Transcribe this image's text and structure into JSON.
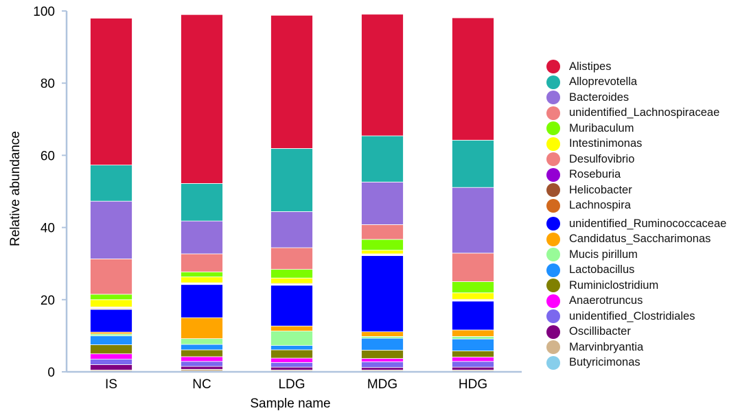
{
  "chart_data": {
    "type": "bar",
    "stacked": true,
    "xlabel": "Sample name",
    "ylabel": "Relative abundance",
    "ylim": [
      0,
      100
    ],
    "yticks": [
      0,
      20,
      40,
      60,
      80,
      100
    ],
    "categories": [
      "IS",
      "NC",
      "LDG",
      "MDG",
      "HDG"
    ],
    "legend_position": "right",
    "series": [
      {
        "name": "Butyricimonas",
        "color": "#87CEEB",
        "values": [
          0.2,
          0.2,
          0.2,
          0.2,
          0.2
        ]
      },
      {
        "name": "Marvinbryantia",
        "color": "#D2B48C",
        "values": [
          0.3,
          0.5,
          0.3,
          0.3,
          0.3
        ]
      },
      {
        "name": "Oscillibacter",
        "color": "#800080",
        "values": [
          1.5,
          0.8,
          0.8,
          0.7,
          0.8
        ]
      },
      {
        "name": "unidentified_Clostridiales",
        "color": "#7B68EE",
        "values": [
          1.5,
          1.4,
          1.3,
          1.6,
          1.6
        ]
      },
      {
        "name": "Anaerotruncus",
        "color": "#FF00FF",
        "values": [
          1.5,
          1.3,
          1.2,
          0.9,
          1.2
        ]
      },
      {
        "name": "Ruminiclostridium",
        "color": "#808000",
        "values": [
          2.5,
          1.9,
          2.3,
          2.3,
          1.7
        ]
      },
      {
        "name": "Lactobacillus",
        "color": "#1E90FF",
        "values": [
          2.5,
          1.5,
          1.2,
          3.3,
          3.3
        ]
      },
      {
        "name": "Mucis pirillum",
        "color": "#98FB98",
        "values": [
          0.5,
          1.6,
          4.0,
          0.5,
          0.7
        ]
      },
      {
        "name": "Candidatus_Saccharimonas",
        "color": "#FFA500",
        "values": [
          0.5,
          5.8,
          1.4,
          1.3,
          1.8
        ]
      },
      {
        "name": "unidentified_Ruminococcaceae",
        "color": "#0000FF",
        "values": [
          6.3,
          9.2,
          11.3,
          21.1,
          8.0
        ]
      },
      {
        "name": "Lachnospira",
        "color": "#D2691E",
        "values": [
          0.2,
          0.1,
          0.1,
          0.1,
          0.1
        ]
      },
      {
        "name": "Helicobacter",
        "color": "#A0522D",
        "values": [
          0.2,
          0.1,
          0.1,
          0.1,
          0.1
        ]
      },
      {
        "name": "Roseburia",
        "color": "#9400D3",
        "values": [
          0.1,
          0.1,
          0.1,
          0.1,
          0.1
        ]
      },
      {
        "name": "Desulfovibrio",
        "color": "#F08080",
        "values": [
          0.2,
          0.2,
          0.2,
          0.2,
          0.2
        ]
      },
      {
        "name": "Intestinimonas",
        "color": "#FFFF00",
        "values": [
          2.0,
          1.6,
          1.5,
          1.0,
          1.8
        ]
      },
      {
        "name": "Muribaculum",
        "color": "#7CFC00",
        "values": [
          1.5,
          1.4,
          2.4,
          3.0,
          3.1
        ]
      },
      {
        "name": "unidentified_Lachnospiraceae",
        "color": "#F08080",
        "values": [
          9.8,
          5.0,
          6.0,
          4.1,
          7.9
        ]
      },
      {
        "name": "Bacteroides",
        "color": "#9370DB",
        "values": [
          16.0,
          9.1,
          10.0,
          11.8,
          18.2
        ]
      },
      {
        "name": "Alloprevotella",
        "color": "#20B2AA",
        "values": [
          10.0,
          10.4,
          17.5,
          12.8,
          13.1
        ]
      },
      {
        "name": "Alistipes",
        "color": "#DC143C",
        "values": [
          40.7,
          46.8,
          36.9,
          33.7,
          33.9
        ]
      }
    ],
    "legend": [
      {
        "name": "Alistipes",
        "color": "#DC143C"
      },
      {
        "name": "Alloprevotella",
        "color": "#20B2AA"
      },
      {
        "name": "Bacteroides",
        "color": "#9370DB"
      },
      {
        "name": "unidentified_Lachnospiraceae",
        "color": "#F08080"
      },
      {
        "name": "Muribaculum",
        "color": "#7CFC00"
      },
      {
        "name": "Intestinimonas",
        "color": "#FFFF00"
      },
      {
        "name": "Desulfovibrio",
        "color": "#F08080"
      },
      {
        "name": "Roseburia",
        "color": "#9400D3"
      },
      {
        "name": "Helicobacter",
        "color": "#A0522D"
      },
      {
        "name": "Lachnospira",
        "color": "#D2691E"
      },
      {
        "name": "unidentified_Ruminococcaceae",
        "color": "#0000FF"
      },
      {
        "name": "Candidatus_Saccharimonas",
        "color": "#FFA500"
      },
      {
        "name": "Mucis pirillum",
        "color": "#98FB98"
      },
      {
        "name": "Lactobacillus",
        "color": "#1E90FF"
      },
      {
        "name": "Ruminiclostridium",
        "color": "#808000"
      },
      {
        "name": "Anaerotruncus",
        "color": "#FF00FF"
      },
      {
        "name": "unidentified_Clostridiales",
        "color": "#7B68EE"
      },
      {
        "name": "Oscillibacter",
        "color": "#800080"
      },
      {
        "name": "Marvinbryantia",
        "color": "#D2B48C"
      },
      {
        "name": "Butyricimonas",
        "color": "#87CEEB"
      }
    ]
  }
}
